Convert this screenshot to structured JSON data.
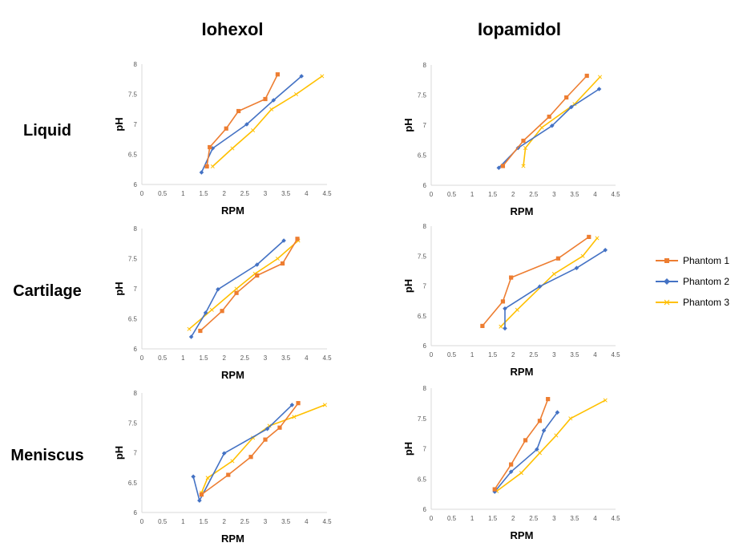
{
  "columns": [
    "Iohexol",
    "Iopamidol"
  ],
  "rows": [
    "Liquid",
    "Cartilage",
    "Meniscus"
  ],
  "legend": [
    {
      "name": "Phantom 1",
      "color": "#ED7D31",
      "marker": "square"
    },
    {
      "name": "Phantom 2",
      "color": "#4472C4",
      "marker": "diamond"
    },
    {
      "name": "Phantom 3",
      "color": "#FFC000",
      "marker": "x"
    }
  ],
  "chart_data": [
    {
      "type": "line",
      "title": "Iohexol - Liquid",
      "xlabel": "RPM",
      "ylabel": "pH",
      "xlim": [
        0,
        4.5
      ],
      "ylim": [
        6,
        8
      ],
      "xticks": [
        "0",
        "0.5",
        "1",
        "1.5",
        "2",
        "2.5",
        "3",
        "3.5",
        "4",
        "4.5"
      ],
      "yticks": [
        "6",
        "6.5",
        "7",
        "7.5",
        "8"
      ],
      "series": [
        {
          "name": "Phantom 1",
          "x": [
            1.58,
            1.65,
            2.05,
            2.35,
            3.0,
            3.3
          ],
          "y": [
            6.3,
            6.62,
            6.93,
            7.22,
            7.42,
            7.83
          ]
        },
        {
          "name": "Phantom 2",
          "x": [
            1.45,
            1.72,
            2.55,
            3.2,
            3.88
          ],
          "y": [
            6.2,
            6.6,
            7.0,
            7.4,
            7.8
          ]
        },
        {
          "name": "Phantom 3",
          "x": [
            1.72,
            2.2,
            2.7,
            3.15,
            3.75,
            4.38
          ],
          "y": [
            6.3,
            6.6,
            6.9,
            7.25,
            7.5,
            7.8
          ]
        }
      ]
    },
    {
      "type": "line",
      "title": "Iopamidol - Liquid",
      "xlabel": "RPM",
      "ylabel": "pH",
      "xlim": [
        0,
        4.5
      ],
      "ylim": [
        6,
        8
      ],
      "xticks": [
        "0",
        "0.5",
        "1",
        "1.5",
        "2",
        "2.5",
        "3",
        "3.5",
        "4",
        "4.5"
      ],
      "yticks": [
        "6",
        "6.5",
        "7",
        "7.5",
        "8"
      ],
      "series": [
        {
          "name": "Phantom 1",
          "x": [
            1.75,
            2.25,
            2.88,
            3.3,
            3.8
          ],
          "y": [
            6.32,
            6.74,
            7.14,
            7.46,
            7.82
          ]
        },
        {
          "name": "Phantom 2",
          "x": [
            1.65,
            2.12,
            2.95,
            3.42,
            4.1
          ],
          "y": [
            6.29,
            6.62,
            6.99,
            7.3,
            7.6
          ]
        },
        {
          "name": "Phantom 3",
          "x": [
            2.25,
            2.3,
            2.7,
            3.5,
            4.12
          ],
          "y": [
            6.32,
            6.62,
            6.96,
            7.35,
            7.8
          ]
        }
      ]
    },
    {
      "type": "line",
      "title": "Iohexol - Cartilage",
      "xlabel": "RPM",
      "ylabel": "pH",
      "xlim": [
        0,
        4.5
      ],
      "ylim": [
        6,
        8
      ],
      "xticks": [
        "0",
        "0.5",
        "1",
        "1.5",
        "2",
        "2.5",
        "3",
        "3.5",
        "4",
        "4.5"
      ],
      "yticks": [
        "6",
        "6.5",
        "7",
        "7.5",
        "8"
      ],
      "series": [
        {
          "name": "Phantom 1",
          "x": [
            1.42,
            1.95,
            2.3,
            2.8,
            3.42,
            3.78
          ],
          "y": [
            6.3,
            6.63,
            6.93,
            7.22,
            7.42,
            7.83
          ]
        },
        {
          "name": "Phantom 2",
          "x": [
            1.2,
            1.55,
            1.85,
            2.8,
            3.45
          ],
          "y": [
            6.2,
            6.6,
            6.99,
            7.4,
            7.8
          ]
        },
        {
          "name": "Phantom 3",
          "x": [
            1.15,
            1.7,
            2.3,
            2.75,
            3.3,
            3.8
          ],
          "y": [
            6.33,
            6.65,
            7.0,
            7.25,
            7.5,
            7.8
          ]
        }
      ]
    },
    {
      "type": "line",
      "title": "Iopamidol - Cartilage",
      "xlabel": "RPM",
      "ylabel": "pH",
      "xlim": [
        0,
        4.5
      ],
      "ylim": [
        6,
        8
      ],
      "xticks": [
        "0",
        "0.5",
        "1",
        "1.5",
        "2",
        "2.5",
        "3",
        "3.5",
        "4",
        "4.5"
      ],
      "yticks": [
        "6",
        "6.5",
        "7",
        "7.5",
        "8"
      ],
      "series": [
        {
          "name": "Phantom 1",
          "x": [
            1.25,
            1.75,
            1.95,
            3.1,
            3.85
          ],
          "y": [
            6.33,
            6.74,
            7.14,
            7.46,
            7.82
          ]
        },
        {
          "name": "Phantom 2",
          "x": [
            1.8,
            1.8,
            2.65,
            3.55,
            4.25
          ],
          "y": [
            6.29,
            6.62,
            6.99,
            7.3,
            7.6
          ]
        },
        {
          "name": "Phantom 3",
          "x": [
            1.7,
            2.1,
            3.0,
            3.7,
            4.05
          ],
          "y": [
            6.32,
            6.6,
            7.2,
            7.5,
            7.8
          ]
        }
      ]
    },
    {
      "type": "line",
      "title": "Iohexol - Meniscus",
      "xlabel": "RPM",
      "ylabel": "pH",
      "xlim": [
        0,
        4.5
      ],
      "ylim": [
        6,
        8
      ],
      "xticks": [
        "0",
        "0.5",
        "1",
        "1.5",
        "2",
        "2.5",
        "3",
        "3.5",
        "4",
        "4.5"
      ],
      "yticks": [
        "6",
        "6.5",
        "7",
        "7.5",
        "8"
      ],
      "series": [
        {
          "name": "Phantom 1",
          "x": [
            1.45,
            2.1,
            2.65,
            3.0,
            3.35,
            3.8
          ],
          "y": [
            6.3,
            6.63,
            6.93,
            7.22,
            7.42,
            7.83
          ]
        },
        {
          "name": "Phantom 2",
          "x": [
            1.25,
            1.4,
            2.0,
            3.05,
            3.65
          ],
          "y": [
            6.6,
            6.2,
            6.99,
            7.4,
            7.8
          ]
        },
        {
          "name": "Phantom 3",
          "x": [
            1.45,
            1.6,
            2.2,
            2.7,
            3.1,
            3.7,
            4.45
          ],
          "y": [
            6.33,
            6.58,
            6.86,
            7.25,
            7.45,
            7.6,
            7.8
          ]
        }
      ]
    },
    {
      "type": "line",
      "title": "Iopamidol - Meniscus",
      "xlabel": "RPM",
      "ylabel": "pH",
      "xlim": [
        0,
        4.5
      ],
      "ylim": [
        6,
        8
      ],
      "xticks": [
        "0",
        "0.5",
        "1",
        "1.5",
        "2",
        "2.5",
        "3",
        "3.5",
        "4",
        "4.5"
      ],
      "yticks": [
        "6",
        "6.5",
        "7",
        "7.5",
        "8"
      ],
      "series": [
        {
          "name": "Phantom 1",
          "x": [
            1.55,
            1.95,
            2.3,
            2.65,
            2.85
          ],
          "y": [
            6.33,
            6.74,
            7.14,
            7.46,
            7.82
          ]
        },
        {
          "name": "Phantom 2",
          "x": [
            1.55,
            1.95,
            2.58,
            2.75,
            3.08
          ],
          "y": [
            6.29,
            6.62,
            6.99,
            7.3,
            7.6
          ]
        },
        {
          "name": "Phantom 3",
          "x": [
            1.6,
            2.2,
            2.65,
            3.05,
            3.4,
            4.25
          ],
          "y": [
            6.3,
            6.6,
            6.93,
            7.22,
            7.5,
            7.8
          ]
        }
      ]
    }
  ]
}
